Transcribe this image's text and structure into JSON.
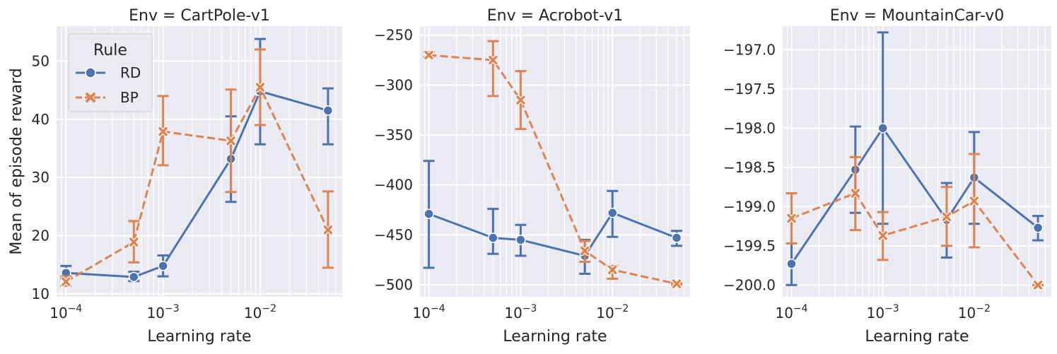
{
  "chart_data": [
    {
      "type": "line",
      "title": "Env = CartPole-v1",
      "xlabel": "Learning rate",
      "ylabel": "Mean of episode reward",
      "xscale": "log",
      "xlim": [
        8e-05,
        0.07
      ],
      "ylim": [
        9.5,
        56
      ],
      "yticks": [
        10,
        20,
        30,
        40,
        50
      ],
      "ytick_labels": [
        "10",
        "20",
        "30",
        "40",
        "50"
      ],
      "legend": {
        "title": "Rule",
        "placement": "top-left"
      },
      "series": [
        {
          "name": "RD",
          "color": "#4c72b0",
          "dash": "solid",
          "marker": "circle",
          "x": [
            0.0001,
            0.0005,
            0.001,
            0.005,
            0.01,
            0.05
          ],
          "y": [
            13.6,
            12.9,
            14.8,
            33.2,
            44.8,
            41.5
          ],
          "err_low": [
            12.6,
            12.2,
            13.0,
            25.8,
            35.7,
            35.7
          ],
          "err_high": [
            14.8,
            13.8,
            16.6,
            40.5,
            53.8,
            45.3
          ]
        },
        {
          "name": "BP",
          "color": "#dd8452",
          "dash": "dashed",
          "marker": "x",
          "x": [
            0.0001,
            0.0005,
            0.001,
            0.005,
            0.01,
            0.05
          ],
          "y": [
            12.1,
            18.9,
            37.9,
            36.3,
            45.5,
            21.0
          ],
          "err_low": [
            11.4,
            15.4,
            32.1,
            27.5,
            39.0,
            14.5
          ],
          "err_high": [
            13.0,
            22.5,
            44.0,
            45.1,
            52.0,
            27.6
          ]
        }
      ]
    },
    {
      "type": "line",
      "title": "Env = Acrobot-v1",
      "xlabel": "Learning rate",
      "ylabel": "",
      "xscale": "log",
      "xlim": [
        8e-05,
        0.07
      ],
      "ylim": [
        -512,
        -241
      ],
      "yticks": [
        -500,
        -450,
        -400,
        -350,
        -300,
        -250
      ],
      "ytick_labels": [
        "−500",
        "−450",
        "−400",
        "−350",
        "−300",
        "−250"
      ],
      "series": [
        {
          "name": "RD",
          "color": "#4c72b0",
          "dash": "solid",
          "marker": "circle",
          "x": [
            0.0001,
            0.0005,
            0.001,
            0.005,
            0.01,
            0.05
          ],
          "y": [
            -429,
            -453,
            -455,
            -471,
            -428,
            -453
          ],
          "err_low": [
            -483,
            -469,
            -471,
            -489,
            -452,
            -461
          ],
          "err_high": [
            -376,
            -424,
            -440,
            -455,
            -406,
            -446
          ]
        },
        {
          "name": "BP",
          "color": "#dd8452",
          "dash": "dashed",
          "marker": "x",
          "x": [
            0.0001,
            0.0005,
            0.001,
            0.005,
            0.01,
            0.05
          ],
          "y": [
            -270,
            -275,
            -315,
            -466,
            -485,
            -499
          ],
          "err_low": [
            -272,
            -311,
            -344,
            -477,
            -494,
            -500
          ],
          "err_high": [
            -267,
            -256,
            -286,
            -456,
            -481,
            -498
          ]
        }
      ]
    },
    {
      "type": "line",
      "title": "Env = MountainCar-v0",
      "xlabel": "Learning rate",
      "ylabel": "",
      "xscale": "log",
      "xlim": [
        8e-05,
        0.07
      ],
      "ylim": [
        -200.15,
        -196.7
      ],
      "yticks": [
        -200.0,
        -199.5,
        -199.0,
        -198.5,
        -198.0,
        -197.5,
        -197.0
      ],
      "ytick_labels": [
        "−200.0",
        "−199.5",
        "−199.0",
        "−198.5",
        "−198.0",
        "−197.5",
        "−197.0"
      ],
      "series": [
        {
          "name": "RD",
          "color": "#4c72b0",
          "dash": "solid",
          "marker": "circle",
          "x": [
            0.0001,
            0.0005,
            0.001,
            0.005,
            0.01,
            0.05
          ],
          "y": [
            -199.73,
            -198.53,
            -198.0,
            -199.17,
            -198.63,
            -199.27
          ],
          "err_low": [
            -200.0,
            -199.08,
            -199.22,
            -199.65,
            -199.22,
            -199.43
          ],
          "err_high": [
            -199.47,
            -197.98,
            -196.78,
            -198.7,
            -198.05,
            -199.12
          ]
        },
        {
          "name": "BP",
          "color": "#dd8452",
          "dash": "dashed",
          "marker": "x",
          "x": [
            0.0001,
            0.0005,
            0.001,
            0.005,
            0.01,
            0.05
          ],
          "y": [
            -199.15,
            -198.83,
            -199.37,
            -199.13,
            -198.93,
            -200.0
          ],
          "err_low": [
            -199.47,
            -199.3,
            -199.68,
            -199.5,
            -199.52,
            -200.0
          ],
          "err_high": [
            -198.83,
            -198.37,
            -199.07,
            -198.75,
            -198.33,
            -200.0
          ]
        }
      ]
    }
  ]
}
